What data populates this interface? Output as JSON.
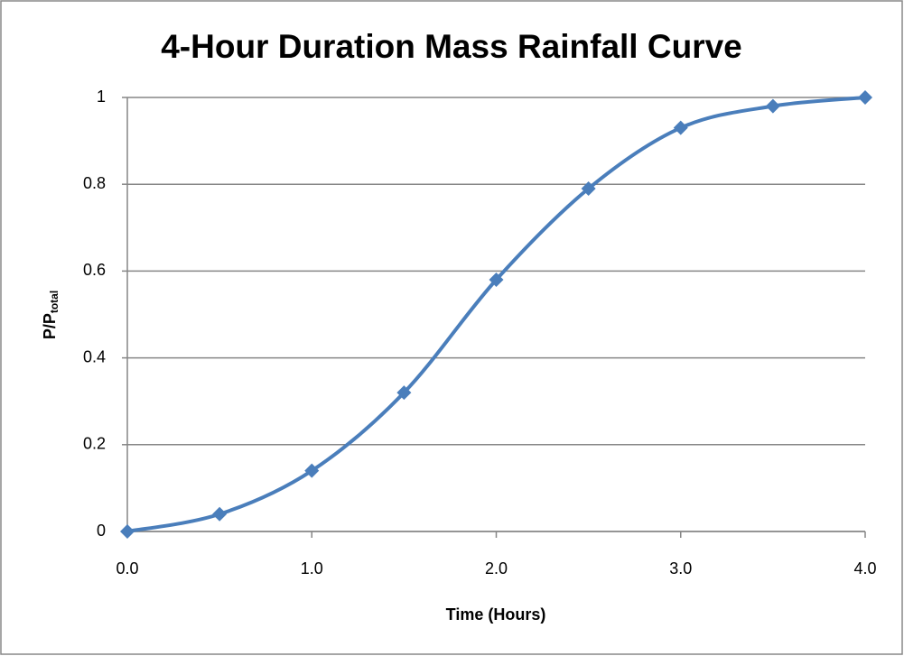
{
  "chart_data": {
    "type": "line",
    "title": "4-Hour Duration Mass Rainfall Curve",
    "x_label": "Time (Hours)",
    "y_label": {
      "main": "P/P",
      "sub": "total"
    },
    "x": [
      0,
      0.5,
      1,
      1.5,
      2,
      2.5,
      3,
      3.5,
      4
    ],
    "series": [
      {
        "color": "#4a7ebb",
        "values": [
          0,
          0.04,
          0.14,
          0.32,
          0.58,
          0.79,
          0.93,
          0.98,
          1.0
        ]
      }
    ],
    "xlim": [
      0,
      4
    ],
    "xticks": [
      {
        "value": 0,
        "label": "0.0"
      },
      {
        "value": 1,
        "label": "1.0"
      },
      {
        "value": 2,
        "label": "2.0"
      },
      {
        "value": 3,
        "label": "3.0"
      },
      {
        "value": 4,
        "label": "4.0"
      }
    ],
    "ylim": [
      0,
      1
    ],
    "yticks": [
      0,
      0.2,
      0.4,
      0.6,
      0.8,
      1
    ],
    "grid": true,
    "smooth": true
  }
}
